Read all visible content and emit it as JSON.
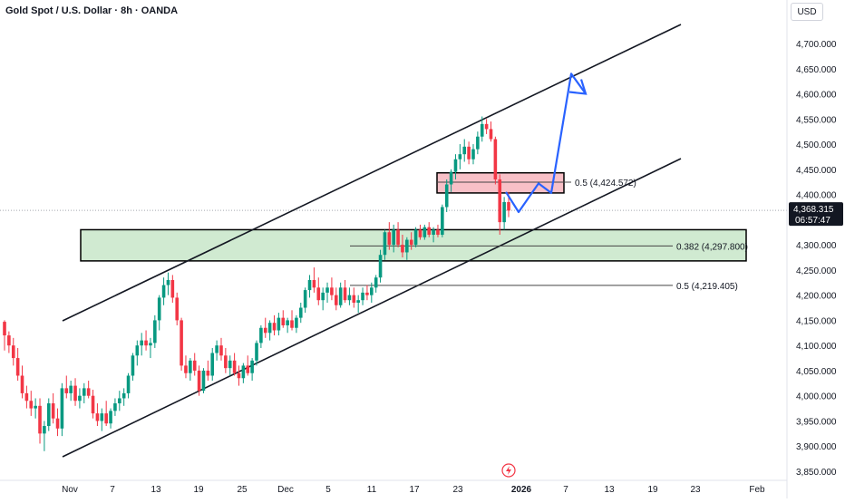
{
  "header": {
    "symbol_title": "Gold Spot / U.S. Dollar · 8h · OANDA",
    "currency": "USD"
  },
  "price_axis": {
    "ticks": [
      "4,700.000",
      "4,650.000",
      "4,600.000",
      "4,550.000",
      "4,500.000",
      "4,450.000",
      "4,400.000",
      "4,350.000",
      "4,300.000",
      "4,250.000",
      "4,200.000",
      "4,150.000",
      "4,100.000",
      "4,050.000",
      "4,000.000",
      "3,950.000",
      "3,900.000",
      "3,850.000"
    ],
    "current_price_label": "4,368.315",
    "countdown_label": "06:57:47",
    "current_price": 4368.315
  },
  "time_axis": {
    "ticks": [
      "Nov",
      "7",
      "13",
      "19",
      "25",
      "Dec",
      "5",
      "11",
      "17",
      "23",
      "2026",
      "7",
      "13",
      "19",
      "23",
      "Feb"
    ]
  },
  "annotations": {
    "fib_upper_label": "0.5 (4,424.572)",
    "fib_mid_label": "0.382 (4,297.800)",
    "fib_lower_label": "0.5 (4,219.405)"
  },
  "colors": {
    "up": "#089981",
    "down": "#f23645",
    "green_zone": "#c8e6c9",
    "red_zone": "#f7b5bd",
    "projection": "#2962ff",
    "price_tag": "#131722"
  },
  "chart_data": {
    "type": "candlestick",
    "title": "Gold Spot / U.S. Dollar · 8h · OANDA",
    "ylim": [
      3850,
      4750
    ],
    "y_unit": "USD",
    "current_price": 4368.315,
    "candles_ohlc": [
      [
        4147,
        4150,
        4090,
        4120
      ],
      [
        4120,
        4128,
        4085,
        4100
      ],
      [
        4100,
        4115,
        4060,
        4075
      ],
      [
        4075,
        4095,
        4030,
        4040
      ],
      [
        4040,
        4060,
        3995,
        4005
      ],
      [
        4005,
        4020,
        3975,
        3990
      ],
      [
        3990,
        4010,
        3960,
        3975
      ],
      [
        3975,
        3995,
        3955,
        3980
      ],
      [
        3980,
        3995,
        3905,
        3925
      ],
      [
        3925,
        3950,
        3890,
        3940
      ],
      [
        3940,
        3995,
        3930,
        3985
      ],
      [
        3985,
        4005,
        3945,
        3955
      ],
      [
        3955,
        3975,
        3920,
        3935
      ],
      [
        3935,
        4025,
        3920,
        4015
      ],
      [
        4015,
        4040,
        3995,
        4005
      ],
      [
        4005,
        4030,
        3990,
        4020
      ],
      [
        4020,
        4035,
        3980,
        3990
      ],
      [
        3990,
        4015,
        3975,
        4000
      ],
      [
        4000,
        4025,
        3985,
        4015
      ],
      [
        4015,
        4030,
        3995,
        4000
      ],
      [
        4000,
        4012,
        3955,
        3965
      ],
      [
        3965,
        3985,
        3940,
        3950
      ],
      [
        3950,
        3975,
        3930,
        3965
      ],
      [
        3965,
        3990,
        3940,
        3945
      ],
      [
        3945,
        3975,
        3935,
        3970
      ],
      [
        3970,
        3995,
        3960,
        3985
      ],
      [
        3985,
        4010,
        3970,
        3995
      ],
      [
        3995,
        4015,
        3980,
        4005
      ],
      [
        4005,
        4045,
        3995,
        4040
      ],
      [
        4040,
        4085,
        4030,
        4080
      ],
      [
        4080,
        4110,
        4060,
        4100
      ],
      [
        4100,
        4125,
        4080,
        4110
      ],
      [
        4110,
        4130,
        4090,
        4100
      ],
      [
        4100,
        4115,
        4075,
        4105
      ],
      [
        4105,
        4160,
        4095,
        4150
      ],
      [
        4150,
        4200,
        4130,
        4195
      ],
      [
        4195,
        4235,
        4180,
        4220
      ],
      [
        4220,
        4245,
        4200,
        4230
      ],
      [
        4230,
        4240,
        4185,
        4195
      ],
      [
        4195,
        4205,
        4140,
        4150
      ],
      [
        4150,
        4155,
        4050,
        4060
      ],
      [
        4060,
        4080,
        4035,
        4045
      ],
      [
        4045,
        4075,
        4030,
        4070
      ],
      [
        4070,
        4085,
        4040,
        4050
      ],
      [
        4050,
        4060,
        4000,
        4010
      ],
      [
        4010,
        4055,
        4005,
        4050
      ],
      [
        4050,
        4070,
        4030,
        4040
      ],
      [
        4040,
        4095,
        4030,
        4085
      ],
      [
        4085,
        4110,
        4070,
        4100
      ],
      [
        4100,
        4115,
        4070,
        4080
      ],
      [
        4080,
        4095,
        4045,
        4055
      ],
      [
        4055,
        4080,
        4040,
        4070
      ],
      [
        4070,
        4085,
        4040,
        4045
      ],
      [
        4045,
        4060,
        4020,
        4035
      ],
      [
        4035,
        4065,
        4025,
        4060
      ],
      [
        4060,
        4080,
        4040,
        4045
      ],
      [
        4045,
        4075,
        4030,
        4070
      ],
      [
        4070,
        4110,
        4060,
        4105
      ],
      [
        4105,
        4140,
        4095,
        4135
      ],
      [
        4135,
        4155,
        4115,
        4125
      ],
      [
        4125,
        4150,
        4110,
        4145
      ],
      [
        4145,
        4160,
        4120,
        4130
      ],
      [
        4130,
        4165,
        4120,
        4155
      ],
      [
        4155,
        4170,
        4135,
        4140
      ],
      [
        4140,
        4155,
        4125,
        4150
      ],
      [
        4150,
        4170,
        4130,
        4135
      ],
      [
        4135,
        4160,
        4125,
        4155
      ],
      [
        4155,
        4185,
        4145,
        4175
      ],
      [
        4175,
        4215,
        4165,
        4210
      ],
      [
        4210,
        4240,
        4195,
        4230
      ],
      [
        4230,
        4255,
        4205,
        4215
      ],
      [
        4215,
        4235,
        4180,
        4190
      ],
      [
        4190,
        4215,
        4170,
        4205
      ],
      [
        4205,
        4225,
        4185,
        4215
      ],
      [
        4215,
        4235,
        4190,
        4200
      ],
      [
        4200,
        4215,
        4170,
        4180
      ],
      [
        4180,
        4225,
        4175,
        4215
      ],
      [
        4215,
        4230,
        4185,
        4190
      ],
      [
        4190,
        4215,
        4180,
        4200
      ],
      [
        4200,
        4215,
        4175,
        4185
      ],
      [
        4185,
        4200,
        4165,
        4190
      ],
      [
        4190,
        4215,
        4180,
        4205
      ],
      [
        4205,
        4220,
        4190,
        4200
      ],
      [
        4200,
        4225,
        4185,
        4215
      ],
      [
        4215,
        4240,
        4205,
        4235
      ],
      [
        4235,
        4290,
        4225,
        4280
      ],
      [
        4280,
        4330,
        4270,
        4325
      ],
      [
        4325,
        4345,
        4290,
        4300
      ],
      [
        4300,
        4340,
        4285,
        4330
      ],
      [
        4330,
        4345,
        4295,
        4300
      ],
      [
        4300,
        4320,
        4275,
        4285
      ],
      [
        4285,
        4315,
        4270,
        4310
      ],
      [
        4310,
        4325,
        4290,
        4300
      ],
      [
        4300,
        4335,
        4295,
        4330
      ],
      [
        4330,
        4340,
        4310,
        4315
      ],
      [
        4315,
        4340,
        4310,
        4335
      ],
      [
        4335,
        4345,
        4315,
        4320
      ],
      [
        4320,
        4335,
        4305,
        4330
      ],
      [
        4330,
        4340,
        4315,
        4320
      ],
      [
        4320,
        4380,
        4315,
        4375
      ],
      [
        4375,
        4430,
        4365,
        4420
      ],
      [
        4420,
        4450,
        4405,
        4445
      ],
      [
        4445,
        4480,
        4430,
        4470
      ],
      [
        4470,
        4500,
        4450,
        4480
      ],
      [
        4480,
        4510,
        4465,
        4495
      ],
      [
        4495,
        4505,
        4460,
        4470
      ],
      [
        4470,
        4500,
        4460,
        4490
      ],
      [
        4490,
        4525,
        4480,
        4515
      ],
      [
        4515,
        4555,
        4505,
        4540
      ],
      [
        4540,
        4550,
        4520,
        4530
      ],
      [
        4530,
        4545,
        4505,
        4510
      ],
      [
        4510,
        4515,
        4420,
        4430
      ],
      [
        4430,
        4440,
        4320,
        4345
      ],
      [
        4345,
        4395,
        4330,
        4385
      ],
      [
        4385,
        4405,
        4355,
        4368
      ]
    ],
    "green_zone": [
      4268,
      4330
    ],
    "red_zone": [
      4403,
      4443
    ],
    "fib_levels": [
      {
        "ratio": 0.5,
        "price": 4424.572
      },
      {
        "ratio": 0.382,
        "price": 4297.8
      },
      {
        "ratio": 0.5,
        "price": 4219.405
      }
    ],
    "projection_path": [
      4405,
      4365,
      4422,
      4403,
      4640,
      4600
    ]
  }
}
